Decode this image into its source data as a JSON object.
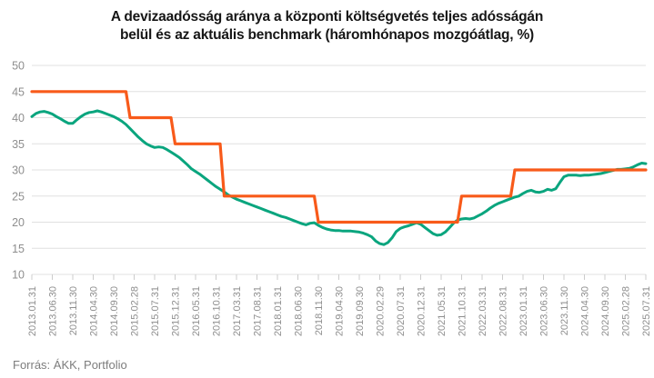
{
  "chart_data": {
    "type": "line",
    "title": "A devizaadósság aránya a központi költségvetés teljes adósságán belül és az aktuális benchmark (háromhónapos mozgóátlag, %)",
    "title_lines": [
      "A devizaadósság aránya a központi költségvetés teljes adósságán",
      "belül és az aktuális benchmark (háromhónapos mozgóátlag, %)"
    ],
    "source": "Forrás: ÁKK, Portfolio",
    "legend": "none",
    "grid": "horizontal",
    "y_axis": {
      "min": 10,
      "max": 50,
      "step": 5,
      "ticks": [
        50,
        45,
        40,
        35,
        30,
        25,
        20,
        15,
        10
      ]
    },
    "x_axis": {
      "tick_every_months": 5,
      "first_month": "2013.01",
      "last_month": "2025.07",
      "tick_labels": [
        "2013.01.31",
        "2013.06.30",
        "2013.11.30",
        "2014.04.30",
        "2014.09.30",
        "2015.02.28",
        "2015.07.31",
        "2015.12.31",
        "2016.05.31",
        "2016.10.31",
        "2017.03.31",
        "2017.08.31",
        "2018.01.31",
        "2018.06.30",
        "2018.11.30",
        "2019.04.30",
        "2019.09.30",
        "2020.02.29",
        "2020.07.31",
        "2020.12.31",
        "2021.05.31",
        "2021.10.31",
        "2022.03.31",
        "2022.08.31",
        "2023.01.31",
        "2023.06.30",
        "2023.11.30",
        "2024.04.30",
        "2024.09.30",
        "2025.02.28",
        "2025.07.31"
      ]
    },
    "colors": {
      "ratio_line": "#0aa57e",
      "benchmark_line": "#f85a1a",
      "grid_line": "#e0e0e0",
      "tick_mark": "#cccccc",
      "axis_text": "#8e8e8e",
      "title_text": "#161616",
      "source_text": "#7d7d7d"
    },
    "series": [
      {
        "name": "Devizaadósság aránya a központi költségvetés adósságán belül (háromhónapos mozgóátlag, %)",
        "color_key": "ratio_line",
        "values": [
          40.2,
          40.8,
          41.1,
          41.2,
          41.0,
          40.7,
          40.2,
          39.8,
          39.3,
          38.9,
          38.9,
          39.6,
          40.2,
          40.7,
          41.0,
          41.1,
          41.3,
          41.1,
          40.8,
          40.5,
          40.2,
          39.8,
          39.3,
          38.7,
          37.9,
          37.1,
          36.3,
          35.6,
          35.0,
          34.6,
          34.3,
          34.4,
          34.3,
          33.9,
          33.4,
          32.9,
          32.4,
          31.7,
          31.0,
          30.2,
          29.7,
          29.2,
          28.6,
          28.0,
          27.4,
          26.8,
          26.3,
          25.8,
          25.2,
          24.8,
          24.4,
          24.1,
          23.8,
          23.5,
          23.2,
          22.9,
          22.6,
          22.3,
          22.0,
          21.7,
          21.4,
          21.1,
          20.9,
          20.6,
          20.3,
          20.0,
          19.7,
          19.5,
          19.8,
          19.9,
          19.4,
          19.0,
          18.7,
          18.5,
          18.4,
          18.4,
          18.3,
          18.3,
          18.3,
          18.2,
          18.1,
          17.9,
          17.6,
          17.2,
          16.4,
          15.9,
          15.7,
          16.1,
          17.0,
          18.2,
          18.8,
          19.1,
          19.3,
          19.6,
          19.9,
          19.6,
          19.0,
          18.4,
          17.8,
          17.5,
          17.6,
          18.1,
          18.9,
          19.8,
          20.4,
          20.6,
          20.7,
          20.6,
          20.8,
          21.2,
          21.6,
          22.1,
          22.7,
          23.2,
          23.6,
          23.9,
          24.2,
          24.5,
          24.8,
          25.0,
          25.5,
          25.9,
          26.1,
          25.8,
          25.7,
          25.9,
          26.3,
          26.1,
          26.4,
          27.6,
          28.7,
          29.0,
          29.0,
          29.0,
          28.9,
          29.0,
          29.0,
          29.1,
          29.2,
          29.3,
          29.5,
          29.7,
          29.9,
          30.1,
          30.1,
          30.2,
          30.3,
          30.6,
          31.0,
          31.3,
          31.2
        ]
      },
      {
        "name": "Aktuális benchmark",
        "color_key": "benchmark_line",
        "values": [
          45,
          45,
          45,
          45,
          45,
          45,
          45,
          45,
          45,
          45,
          45,
          45,
          45,
          45,
          45,
          45,
          45,
          45,
          45,
          45,
          45,
          45,
          45,
          45,
          40,
          40,
          40,
          40,
          40,
          40,
          40,
          40,
          40,
          40,
          40,
          35,
          35,
          35,
          35,
          35,
          35,
          35,
          35,
          35,
          35,
          35,
          35,
          25,
          25,
          25,
          25,
          25,
          25,
          25,
          25,
          25,
          25,
          25,
          25,
          25,
          25,
          25,
          25,
          25,
          25,
          25,
          25,
          25,
          25,
          25,
          20,
          20,
          20,
          20,
          20,
          20,
          20,
          20,
          20,
          20,
          20,
          20,
          20,
          20,
          20,
          20,
          20,
          20,
          20,
          20,
          20,
          20,
          20,
          20,
          20,
          20,
          20,
          20,
          20,
          20,
          20,
          20,
          20,
          20,
          20,
          25,
          25,
          25,
          25,
          25,
          25,
          25,
          25,
          25,
          25,
          25,
          25,
          25,
          30,
          30,
          30,
          30,
          30,
          30,
          30,
          30,
          30,
          30,
          30,
          30,
          30,
          30,
          30,
          30,
          30,
          30,
          30,
          30,
          30,
          30,
          30,
          30,
          30,
          30,
          30,
          30,
          30,
          30,
          30,
          30,
          30
        ]
      }
    ]
  }
}
